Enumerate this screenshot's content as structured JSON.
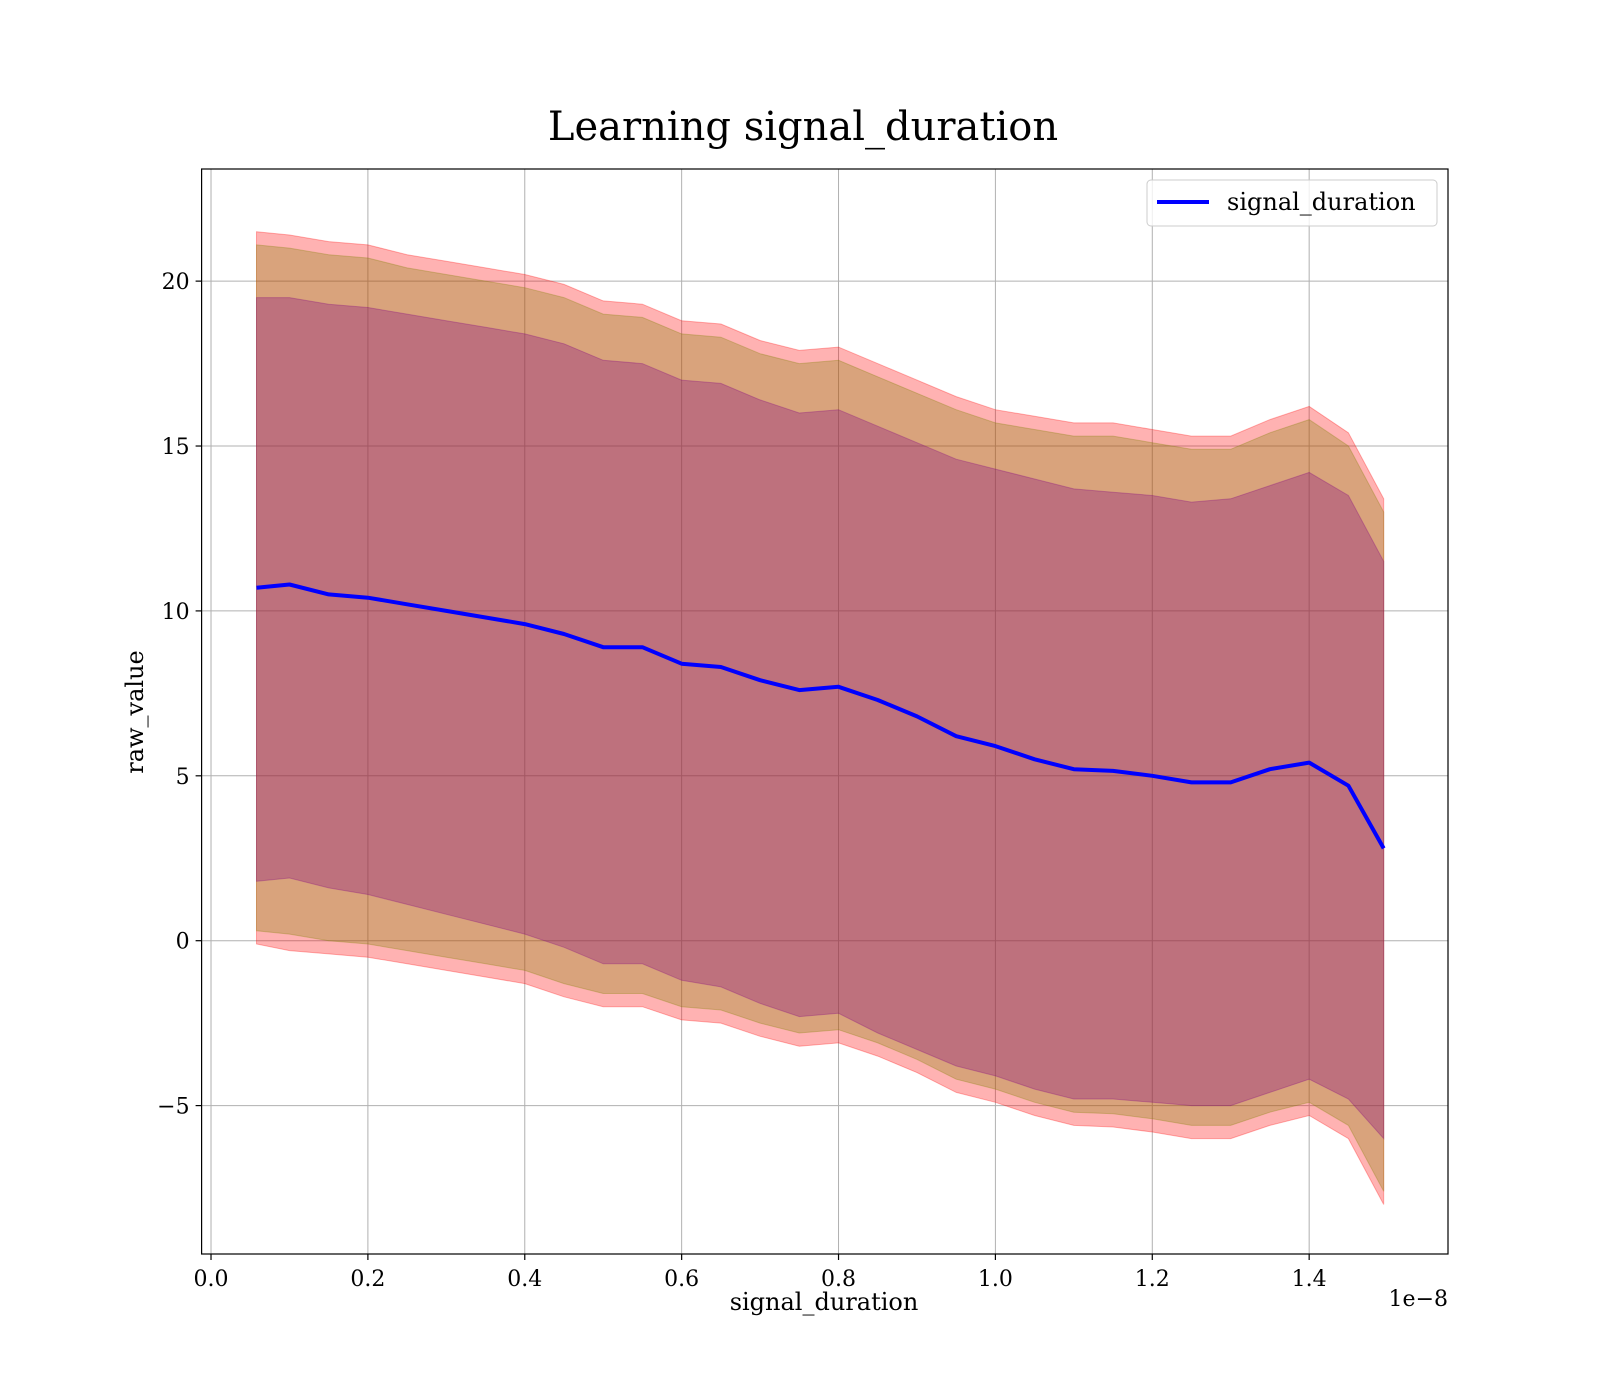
{
  "chart_data": {
    "type": "line",
    "title": "Learning signal_duration",
    "xlabel": "signal_duration",
    "ylabel": "raw_value",
    "x_offset_label": "1e−8",
    "xlim": [
      -0.012,
      1.577
    ],
    "ylim": [
      -9.5,
      23.4
    ],
    "grid": true,
    "legend_position": "upper right",
    "x_ticks": [
      0.0,
      0.2,
      0.4,
      0.6,
      0.8,
      1.0,
      1.2,
      1.4
    ],
    "x_tick_labels": [
      "0.0",
      "0.2",
      "0.4",
      "0.6",
      "0.8",
      "1.0",
      "1.2",
      "1.4"
    ],
    "y_ticks": [
      -5,
      0,
      5,
      10,
      15,
      20
    ],
    "y_tick_labels": [
      "−5",
      "0",
      "5",
      "10",
      "15",
      "20"
    ],
    "x": [
      0.058,
      0.1,
      0.15,
      0.2,
      0.25,
      0.3,
      0.35,
      0.4,
      0.45,
      0.5,
      0.55,
      0.6,
      0.65,
      0.7,
      0.75,
      0.8,
      0.85,
      0.9,
      0.95,
      1.0,
      1.05,
      1.1,
      1.15,
      1.2,
      1.25,
      1.3,
      1.35,
      1.4,
      1.45,
      1.495
    ],
    "series": [
      {
        "name": "signal_duration",
        "color": "#0000ff",
        "values": [
          10.7,
          10.8,
          10.5,
          10.4,
          10.2,
          10.0,
          9.8,
          9.6,
          9.3,
          8.9,
          8.9,
          8.4,
          8.3,
          7.9,
          7.6,
          7.7,
          7.3,
          6.8,
          6.2,
          5.9,
          5.5,
          5.2,
          5.15,
          5.0,
          4.8,
          4.8,
          5.2,
          5.4,
          4.7,
          2.8
        ]
      }
    ],
    "bands": [
      {
        "color": "#ff0000",
        "opacity": 0.3,
        "lower": [
          -0.1,
          -0.3,
          -0.4,
          -0.5,
          -0.7,
          -0.9,
          -1.1,
          -1.3,
          -1.7,
          -2.0,
          -2.0,
          -2.4,
          -2.5,
          -2.9,
          -3.2,
          -3.1,
          -3.5,
          -4.0,
          -4.6,
          -4.9,
          -5.3,
          -5.6,
          -5.65,
          -5.8,
          -6.0,
          -6.0,
          -5.6,
          -5.3,
          -6.0,
          -8.0
        ],
        "upper": [
          21.5,
          21.4,
          21.2,
          21.1,
          20.8,
          20.6,
          20.4,
          20.2,
          19.9,
          19.4,
          19.3,
          18.8,
          18.7,
          18.2,
          17.9,
          18.0,
          17.5,
          17.0,
          16.5,
          16.1,
          15.9,
          15.7,
          15.7,
          15.5,
          15.3,
          15.3,
          15.8,
          16.2,
          15.4,
          13.4
        ]
      },
      {
        "color": "#808000",
        "opacity": 0.3,
        "lower": [
          0.3,
          0.2,
          0.0,
          -0.1,
          -0.3,
          -0.5,
          -0.7,
          -0.9,
          -1.3,
          -1.6,
          -1.6,
          -2.0,
          -2.1,
          -2.5,
          -2.8,
          -2.7,
          -3.1,
          -3.6,
          -4.2,
          -4.5,
          -4.9,
          -5.2,
          -5.25,
          -5.4,
          -5.6,
          -5.6,
          -5.2,
          -4.9,
          -5.6,
          -7.6
        ],
        "upper": [
          21.1,
          21.0,
          20.8,
          20.7,
          20.4,
          20.2,
          20.0,
          19.8,
          19.5,
          19.0,
          18.9,
          18.4,
          18.3,
          17.8,
          17.5,
          17.6,
          17.1,
          16.6,
          16.1,
          15.7,
          15.5,
          15.3,
          15.3,
          15.1,
          14.9,
          14.9,
          15.4,
          15.8,
          15.0,
          13.0
        ]
      },
      {
        "color": "#800080",
        "opacity": 0.3,
        "lower": [
          1.8,
          1.9,
          1.6,
          1.4,
          1.1,
          0.8,
          0.5,
          0.2,
          -0.2,
          -0.7,
          -0.7,
          -1.2,
          -1.4,
          -1.9,
          -2.3,
          -2.2,
          -2.8,
          -3.3,
          -3.8,
          -4.1,
          -4.5,
          -4.8,
          -4.8,
          -4.9,
          -5.0,
          -5.0,
          -4.6,
          -4.2,
          -4.8,
          -6.0
        ],
        "upper": [
          19.5,
          19.5,
          19.3,
          19.2,
          19.0,
          18.8,
          18.6,
          18.4,
          18.1,
          17.6,
          17.5,
          17.0,
          16.9,
          16.4,
          16.0,
          16.1,
          15.6,
          15.1,
          14.6,
          14.3,
          14.0,
          13.7,
          13.6,
          13.5,
          13.3,
          13.4,
          13.8,
          14.2,
          13.5,
          11.5
        ]
      }
    ]
  }
}
